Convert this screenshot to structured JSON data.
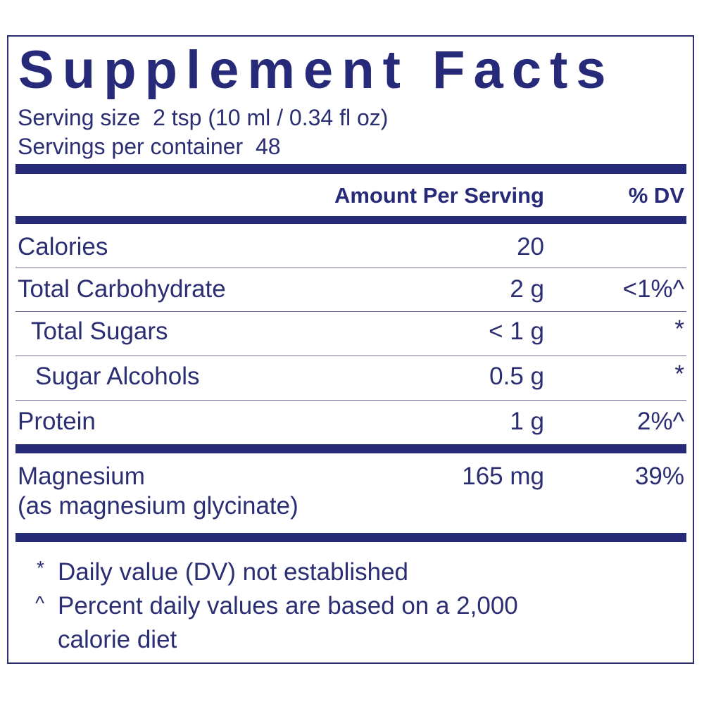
{
  "title": "Supplement Facts",
  "serving": [
    "Serving size  2 tsp (10 ml / 0.34 fl oz)",
    "Servings per container  48"
  ],
  "table": {
    "header": [
      "Amount Per Serving",
      "% DV"
    ],
    "rows": [
      {
        "name": "Calories",
        "amount": "20"
      },
      {
        "name": "Total Carbohydrate",
        "amount": "2 g",
        "dv": "<1%^"
      },
      {
        "name": "Total Sugars",
        "amount": "< 1 g",
        "dv": "*"
      },
      {
        "name": "Sugar Alcohols",
        "amount": "0.5 g",
        "dv": "*"
      },
      {
        "name": "Protein",
        "amount": "1 g",
        "dv": "2%^"
      },
      {
        "name": "Magnesium",
        "note": "(as magnesium glycinate)",
        "amount": "165 mg",
        "dv": "39%"
      }
    ]
  },
  "footnotes": [
    {
      "mark": "*",
      "text": "Daily value (DV) not established"
    },
    {
      "mark": "^",
      "text": "Percent daily values are based on a 2,000"
    },
    {
      "text": "calorie diet"
    }
  ]
}
